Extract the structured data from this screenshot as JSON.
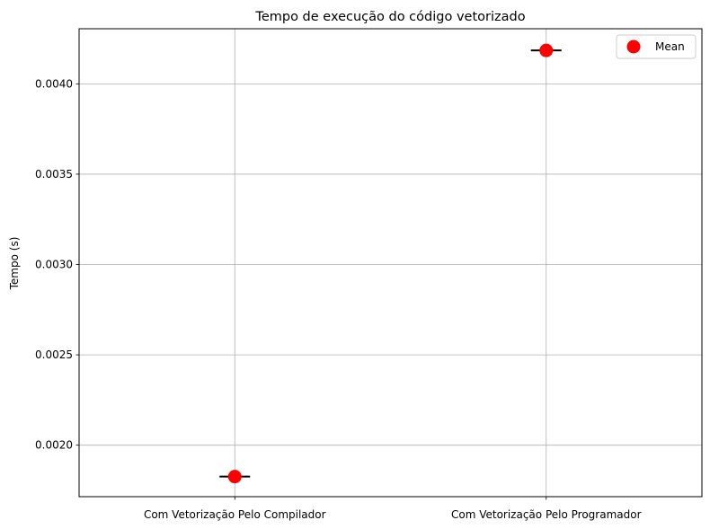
{
  "chart_data": {
    "type": "box",
    "title": "Tempo de execução do código vetorizado",
    "xlabel": "",
    "ylabel": "Tempo  (s)",
    "categories": [
      "Com Vetorização Pelo Compilador",
      "Com Vetorização Pelo Programador"
    ],
    "medians": [
      0.001826,
      0.004185
    ],
    "means": [
      0.001826,
      0.004185
    ],
    "ylim": [
      0.001715,
      0.004305
    ],
    "yticks": [
      0.002,
      0.0025,
      0.003,
      0.0035,
      0.004
    ],
    "ytick_labels": [
      "0.0020",
      "0.0025",
      "0.0030",
      "0.0035",
      "0.0040"
    ],
    "grid": true,
    "legend": {
      "placement": "top-right",
      "entries": [
        "Mean"
      ]
    },
    "colors": {
      "mean_marker": "#ff0000",
      "median_line": "#000000",
      "grid": "#b0b0b0"
    }
  }
}
